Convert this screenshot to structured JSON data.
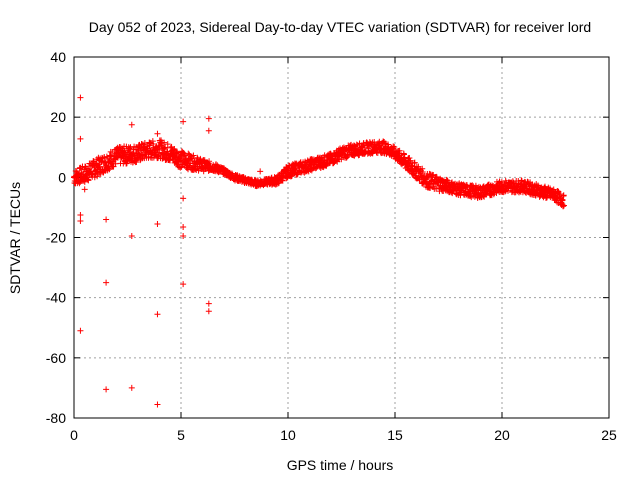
{
  "chart_data": {
    "type": "scatter",
    "title": "Day 052 of 2023, Sidereal Day-to-day VTEC variation (SDTVAR) for receiver lord",
    "xlabel": "GPS time / hours",
    "ylabel": "SDTVAR / TECUs",
    "xlim": [
      0,
      25
    ],
    "ylim": [
      -80,
      40
    ],
    "xticks": [
      "0",
      "5",
      "10",
      "15",
      "20",
      "25"
    ],
    "yticks": [
      "-80",
      "-60",
      "-40",
      "-20",
      "0",
      "20",
      "40"
    ],
    "grid": true,
    "marker": "+",
    "color": "#ff0000",
    "series": [
      {
        "name": "SDTVAR band",
        "x": [
          0.0,
          0.5,
          1.0,
          1.5,
          2.0,
          2.5,
          3.0,
          3.5,
          4.0,
          4.5,
          5.0,
          5.5,
          6.0,
          6.5,
          7.0,
          7.5,
          8.0,
          8.5,
          9.0,
          9.5,
          10.0,
          10.5,
          11.0,
          11.5,
          12.0,
          12.5,
          13.0,
          13.5,
          14.0,
          14.5,
          15.0,
          15.5,
          16.0,
          16.5,
          17.0,
          17.5,
          18.0,
          18.5,
          19.0,
          19.5,
          20.0,
          20.5,
          21.0,
          21.5,
          22.0,
          22.5,
          22.9
        ],
        "y": [
          0,
          1,
          3,
          5,
          7,
          7.5,
          8,
          9,
          9.5,
          8,
          6,
          5,
          4,
          3.5,
          2,
          0,
          -1,
          -2,
          -1.5,
          -1,
          2,
          3,
          4,
          5,
          6,
          8,
          9,
          9.5,
          10,
          10,
          8,
          5,
          2,
          -1,
          -2,
          -3,
          -4,
          -4.5,
          -5,
          -4,
          -3,
          -3,
          -3,
          -4,
          -5,
          -6,
          -8
        ],
        "spread": [
          2.5,
          3,
          3,
          3,
          3,
          3,
          3,
          3,
          3,
          3,
          3,
          2.5,
          2,
          1.5,
          1,
          1,
          1,
          1,
          1,
          1.5,
          2,
          2,
          2,
          2,
          2,
          2,
          2,
          2,
          2,
          2,
          2,
          2.5,
          2.5,
          2.5,
          2.5,
          2,
          2,
          2,
          2,
          2,
          2,
          2,
          2,
          2,
          2,
          2,
          2
        ]
      },
      {
        "name": "outliers",
        "x": [
          0.3,
          0.3,
          0.3,
          0.3,
          0.3,
          0.5,
          1.5,
          1.5,
          1.5,
          2.7,
          2.7,
          2.7,
          3.9,
          3.9,
          3.9,
          3.9,
          5.1,
          5.1,
          5.1,
          5.1,
          5.1,
          6.3,
          6.3,
          6.3,
          6.3,
          8.7
        ],
        "y": [
          26.5,
          12.8,
          -12.5,
          -14.5,
          -51,
          -4,
          -14,
          -35,
          -70.5,
          17.5,
          -19.5,
          -70,
          14.5,
          -15.5,
          -45.5,
          -75.5,
          18.5,
          -7,
          -16.5,
          -19.5,
          -35.5,
          19.5,
          15.5,
          -42,
          -44.5,
          2
        ]
      }
    ]
  }
}
